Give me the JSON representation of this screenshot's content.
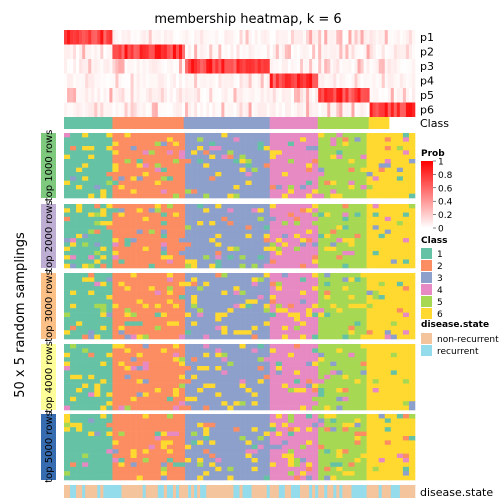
{
  "chart_data": {
    "type": "heatmap",
    "title": "membership heatmap, k = 6",
    "y_axis_label": "50 x 5 random samplings",
    "membership_rows": [
      "p1",
      "p2",
      "p3",
      "p4",
      "p5",
      "p6"
    ],
    "class_annotation_label": "Class",
    "disease_annotation_label": "disease.state",
    "sampling_blocks": [
      "top 1000 rows",
      "top 2000 rows",
      "top 3000 rows",
      "top 4000 rows",
      "top 5000 rows"
    ],
    "block_colors": [
      "#7fc97f",
      "#beaed4",
      "#fdc086",
      "#ffff99",
      "#386cb0"
    ],
    "class_groups": [
      {
        "class": "1",
        "fraction": 0.138
      },
      {
        "class": "2",
        "fraction": 0.203
      },
      {
        "class": "3",
        "fraction": 0.245
      },
      {
        "class": "4",
        "fraction": 0.137
      },
      {
        "class": "5",
        "fraction": 0.145
      },
      {
        "class": "6",
        "fraction": 0.058
      }
    ],
    "legend": {
      "prob": {
        "title": "Prob",
        "ticks": [
          "1",
          "0.8",
          "0.6",
          "0.4",
          "0.2",
          "0"
        ],
        "colors": [
          "#ff0000",
          "#ffffff"
        ]
      },
      "class": {
        "title": "Class",
        "items": [
          {
            "label": "1",
            "color": "#66c2a5"
          },
          {
            "label": "2",
            "color": "#fc8d62"
          },
          {
            "label": "3",
            "color": "#8da0cb"
          },
          {
            "label": "4",
            "color": "#e78ac3"
          },
          {
            "label": "5",
            "color": "#a6d854"
          },
          {
            "label": "6",
            "color": "#ffd92f"
          }
        ]
      },
      "disease_state": {
        "title": "disease.state",
        "items": [
          {
            "label": "non-recurrent",
            "color": "#f4c49c"
          },
          {
            "label": "recurrent",
            "color": "#94dcec"
          }
        ]
      }
    }
  }
}
